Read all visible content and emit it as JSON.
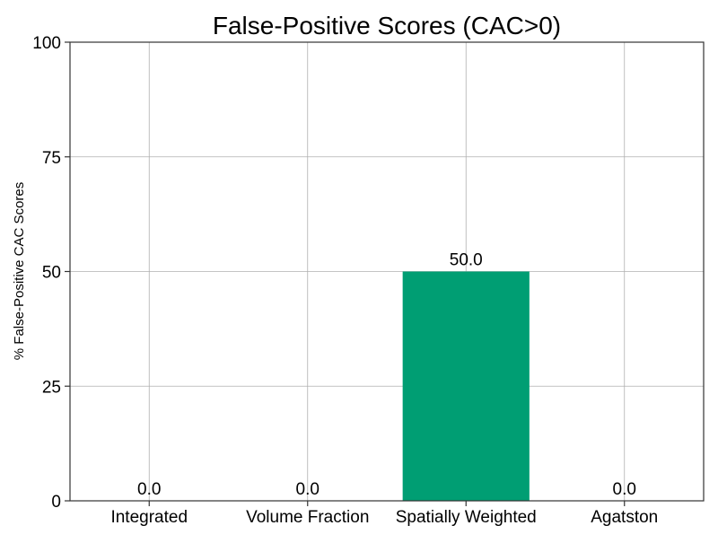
{
  "chart_data": {
    "type": "bar",
    "title": "False-Positive Scores (CAC>0)",
    "xlabel": "",
    "ylabel": "% False-Positive CAC Scores",
    "categories": [
      "Integrated",
      "Volume Fraction",
      "Spatially Weighted",
      "Agatston"
    ],
    "values": [
      0.0,
      0.0,
      50.0,
      0.0
    ],
    "value_labels": [
      "0.0",
      "0.0",
      "50.0",
      "0.0"
    ],
    "ylim": [
      0,
      100
    ],
    "yticks": [
      0,
      25,
      50,
      75,
      100
    ],
    "ytick_labels": [
      "0",
      "25",
      "50",
      "75",
      "100"
    ],
    "bar_color": "#009e73",
    "grid": true,
    "legend": "none"
  }
}
